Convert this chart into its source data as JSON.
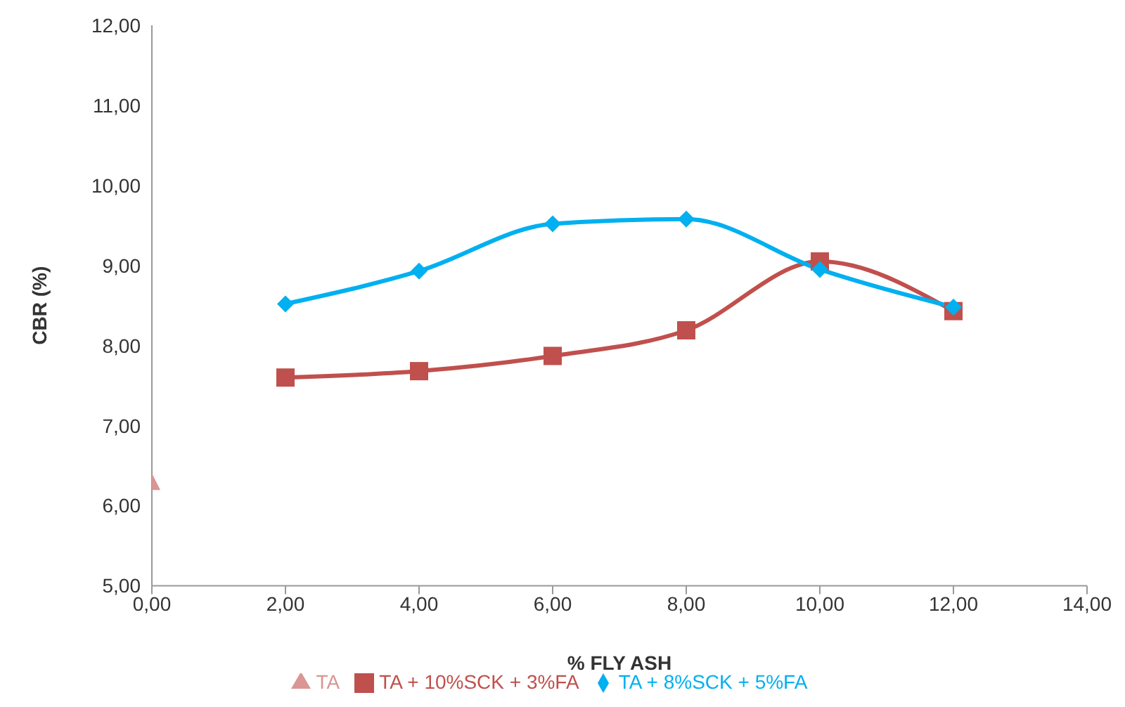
{
  "chart_data": {
    "type": "line",
    "xlabel": "% FLY ASH",
    "ylabel": "CBR (%)",
    "xlim": [
      0,
      14
    ],
    "xticks": [
      {
        "value": 0,
        "label": "0,00"
      },
      {
        "value": 2,
        "label": "2,00"
      },
      {
        "value": 4,
        "label": "4,00"
      },
      {
        "value": 6,
        "label": "6,00"
      },
      {
        "value": 8,
        "label": "8,00"
      },
      {
        "value": 10,
        "label": "10,00"
      },
      {
        "value": 12,
        "label": "12,00"
      },
      {
        "value": 14,
        "label": "14,00"
      }
    ],
    "ylim": [
      5,
      12
    ],
    "yticks": [
      {
        "value": 5,
        "label": "5,00"
      },
      {
        "value": 6,
        "label": "6,00"
      },
      {
        "value": 7,
        "label": "7,00"
      },
      {
        "value": 8,
        "label": "8,00"
      },
      {
        "value": 9,
        "label": "9,00"
      },
      {
        "value": 10,
        "label": "10,00"
      },
      {
        "value": 11,
        "label": "11,00"
      },
      {
        "value": 12,
        "label": "12,00"
      }
    ],
    "legend": "bottom",
    "series": [
      {
        "name": "TA + 10%SCK + 3%FA",
        "color": "#c0504d",
        "marker": "square",
        "x": [
          2,
          4,
          6,
          8,
          10,
          12
        ],
        "values": [
          7.6,
          7.68,
          7.87,
          8.19,
          9.05,
          8.43
        ]
      },
      {
        "name": "TA",
        "color": "#d99694",
        "marker": "triangle",
        "x": [
          0
        ],
        "values": [
          6.3
        ]
      },
      {
        "name": "TA + 8%SCK + 5%FA",
        "color": "#00b0f0",
        "marker": "diamond",
        "x": [
          2,
          4,
          6,
          8,
          10,
          12
        ],
        "values": [
          8.52,
          8.93,
          9.52,
          9.58,
          8.95,
          8.48
        ]
      }
    ]
  }
}
